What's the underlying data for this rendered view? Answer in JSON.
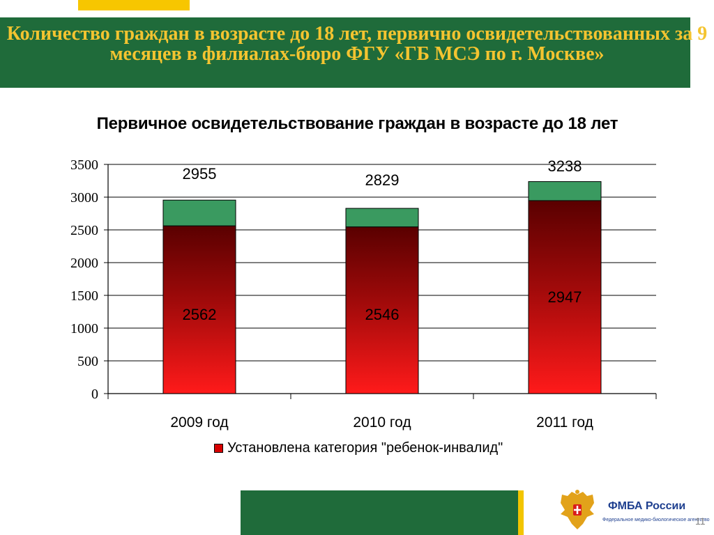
{
  "slide": {
    "title": "Количество граждан в возрасте до 18 лет, первично освидетельствованных за 9 месяцев в филиалах-бюро ФГУ «ГБ МСЭ по г. Москве»",
    "page_number": "11"
  },
  "brand": {
    "name": "ФМБА России",
    "subtitle": "Федеральное медико-биологическое агентство"
  },
  "colors": {
    "banner": "#1f6b3a",
    "title_text": "#f4c430",
    "bar_red_top": "#5a0000",
    "bar_red_bottom": "#ff1a1a",
    "bar_green": "#3a9a60"
  },
  "chart_data": {
    "type": "bar",
    "stacked": true,
    "title": "Первичное освидетельствование граждан в возрасте до 18 лет",
    "categories": [
      "2009 год",
      "2010 год",
      "2011 год"
    ],
    "series": [
      {
        "name": "Установлена категория \"ребенок-инвалид\"",
        "values": [
          2562,
          2546,
          2947
        ],
        "labels": [
          "2562",
          "2546",
          "2947"
        ]
      },
      {
        "values": [
          393,
          283,
          291
        ]
      }
    ],
    "totals": [
      2955,
      2829,
      3238
    ],
    "total_labels": [
      "2955",
      "2829",
      "3238"
    ],
    "ylim": [
      0,
      3500
    ],
    "yticks": [
      0,
      500,
      1000,
      1500,
      2000,
      2500,
      3000,
      3500
    ],
    "ytick_labels": [
      "0",
      "500",
      "1000",
      "1500",
      "2000",
      "2500",
      "3000",
      "3500"
    ],
    "grid": true,
    "legend_position": "bottom"
  }
}
